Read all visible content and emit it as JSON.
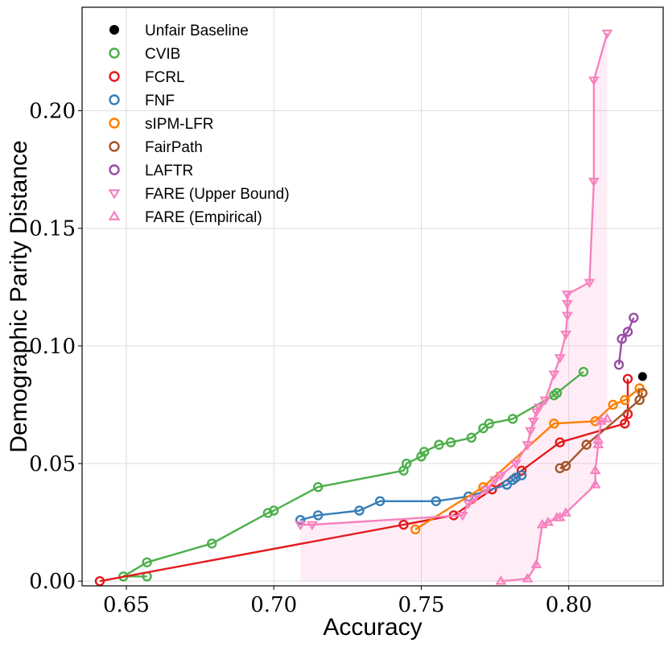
{
  "chart_data": {
    "type": "line",
    "title": "",
    "xlabel": "Accuracy",
    "ylabel": "Demographic Parity Distance",
    "xlim": [
      0.635,
      0.832
    ],
    "ylim": [
      -0.002,
      0.244
    ],
    "xticks": [
      0.65,
      0.7,
      0.75,
      0.8
    ],
    "xtick_labels": [
      "0.65",
      "0.70",
      "0.75",
      "0.80"
    ],
    "yticks": [
      0.0,
      0.05,
      0.1,
      0.15,
      0.2
    ],
    "ytick_labels": [
      "0.00",
      "0.05",
      "0.10",
      "0.15",
      "0.20"
    ],
    "grid": true,
    "legend_position": "top-left",
    "fill_between": {
      "upper": [
        [
          0.709,
          0.024
        ],
        [
          0.713,
          0.024
        ],
        [
          0.764,
          0.028
        ],
        [
          0.766,
          0.033
        ],
        [
          0.775,
          0.043
        ],
        [
          0.786,
          0.058
        ],
        [
          0.789,
          0.072
        ],
        [
          0.792,
          0.077
        ],
        [
          0.795,
          0.088
        ],
        [
          0.797,
          0.095
        ],
        [
          0.799,
          0.105
        ],
        [
          0.7995,
          0.113
        ],
        [
          0.7995,
          0.118
        ],
        [
          0.7995,
          0.122
        ],
        [
          0.807,
          0.127
        ],
        [
          0.8085,
          0.17
        ],
        [
          0.8085,
          0.213
        ],
        [
          0.813,
          0.233
        ]
      ],
      "lower": [
        [
          0.777,
          0.0
        ],
        [
          0.786,
          0.001
        ],
        [
          0.789,
          0.007
        ],
        [
          0.791,
          0.024
        ],
        [
          0.796,
          0.027
        ],
        [
          0.799,
          0.029
        ],
        [
          0.809,
          0.041
        ],
        [
          0.809,
          0.047
        ],
        [
          0.81,
          0.058
        ],
        [
          0.813,
          0.069
        ]
      ],
      "color": "#f781bf"
    },
    "series": [
      {
        "name": "Unfair Baseline",
        "color": "#000000",
        "marker": "dot",
        "line": false,
        "points": [
          [
            0.825,
            0.087
          ]
        ]
      },
      {
        "name": "CVIB",
        "color": "#4daf4a",
        "marker": "circle",
        "line": true,
        "points": [
          [
            0.657,
            0.002
          ],
          [
            0.649,
            0.002
          ],
          [
            0.657,
            0.008
          ],
          [
            0.679,
            0.016
          ],
          [
            0.698,
            0.029
          ],
          [
            0.7,
            0.03
          ],
          [
            0.715,
            0.04
          ],
          [
            0.744,
            0.047
          ],
          [
            0.745,
            0.05
          ],
          [
            0.75,
            0.053
          ],
          [
            0.751,
            0.055
          ],
          [
            0.756,
            0.058
          ],
          [
            0.76,
            0.059
          ],
          [
            0.767,
            0.061
          ],
          [
            0.771,
            0.065
          ],
          [
            0.773,
            0.067
          ],
          [
            0.781,
            0.069
          ],
          [
            0.795,
            0.079
          ],
          [
            0.796,
            0.08
          ],
          [
            0.805,
            0.089
          ]
        ]
      },
      {
        "name": "FCRL",
        "color": "#e41a1c",
        "marker": "circle",
        "line": true,
        "points": [
          [
            0.641,
            0.0
          ],
          [
            0.744,
            0.024
          ],
          [
            0.761,
            0.028
          ],
          [
            0.774,
            0.039
          ],
          [
            0.784,
            0.047
          ],
          [
            0.797,
            0.059
          ],
          [
            0.819,
            0.067
          ],
          [
            0.82,
            0.071
          ],
          [
            0.82,
            0.086
          ]
        ]
      },
      {
        "name": "FNF",
        "color": "#377eb8",
        "marker": "circle",
        "line": true,
        "points": [
          [
            0.709,
            0.026
          ],
          [
            0.715,
            0.028
          ],
          [
            0.729,
            0.03
          ],
          [
            0.736,
            0.034
          ],
          [
            0.755,
            0.034
          ],
          [
            0.766,
            0.036
          ],
          [
            0.779,
            0.041
          ],
          [
            0.781,
            0.043
          ],
          [
            0.782,
            0.044
          ],
          [
            0.784,
            0.045
          ]
        ]
      },
      {
        "name": "sIPM-LFR",
        "color": "#ff7f00",
        "marker": "circle",
        "line": true,
        "points": [
          [
            0.748,
            0.022
          ],
          [
            0.771,
            0.04
          ],
          [
            0.795,
            0.067
          ],
          [
            0.809,
            0.068
          ],
          [
            0.815,
            0.075
          ],
          [
            0.819,
            0.077
          ],
          [
            0.824,
            0.082
          ]
        ]
      },
      {
        "name": "FairPath",
        "color": "#a65628",
        "marker": "circle",
        "line": true,
        "points": [
          [
            0.797,
            0.048
          ],
          [
            0.799,
            0.049
          ],
          [
            0.806,
            0.058
          ],
          [
            0.824,
            0.077
          ],
          [
            0.825,
            0.08
          ]
        ]
      },
      {
        "name": "LAFTR",
        "color": "#984ea3",
        "marker": "circle",
        "line": true,
        "points": [
          [
            0.817,
            0.092
          ],
          [
            0.818,
            0.103
          ],
          [
            0.82,
            0.106
          ],
          [
            0.822,
            0.112
          ]
        ]
      },
      {
        "name": "FARE (Upper Bound)",
        "color": "#f781bf",
        "marker": "triangle-down",
        "line": true,
        "points": [
          [
            0.709,
            0.024
          ],
          [
            0.713,
            0.024
          ],
          [
            0.764,
            0.028
          ],
          [
            0.766,
            0.033
          ],
          [
            0.768,
            0.035
          ],
          [
            0.772,
            0.039
          ],
          [
            0.775,
            0.043
          ],
          [
            0.777,
            0.045
          ],
          [
            0.782,
            0.05
          ],
          [
            0.786,
            0.058
          ],
          [
            0.787,
            0.064
          ],
          [
            0.788,
            0.068
          ],
          [
            0.789,
            0.072
          ],
          [
            0.79,
            0.074
          ],
          [
            0.792,
            0.077
          ],
          [
            0.795,
            0.088
          ],
          [
            0.797,
            0.095
          ],
          [
            0.799,
            0.105
          ],
          [
            0.7995,
            0.113
          ],
          [
            0.7995,
            0.118
          ],
          [
            0.7995,
            0.122
          ],
          [
            0.807,
            0.127
          ],
          [
            0.8085,
            0.17
          ],
          [
            0.8085,
            0.213
          ],
          [
            0.813,
            0.233
          ]
        ]
      },
      {
        "name": "FARE (Empirical)",
        "color": "#f781bf",
        "marker": "triangle-up",
        "line": true,
        "points": [
          [
            0.777,
            0.0
          ],
          [
            0.786,
            0.001
          ],
          [
            0.789,
            0.007
          ],
          [
            0.791,
            0.024
          ],
          [
            0.793,
            0.025
          ],
          [
            0.796,
            0.027
          ],
          [
            0.797,
            0.027
          ],
          [
            0.799,
            0.029
          ],
          [
            0.809,
            0.041
          ],
          [
            0.809,
            0.047
          ],
          [
            0.81,
            0.058
          ],
          [
            0.81,
            0.06
          ],
          [
            0.811,
            0.068
          ],
          [
            0.813,
            0.069
          ]
        ]
      }
    ]
  }
}
